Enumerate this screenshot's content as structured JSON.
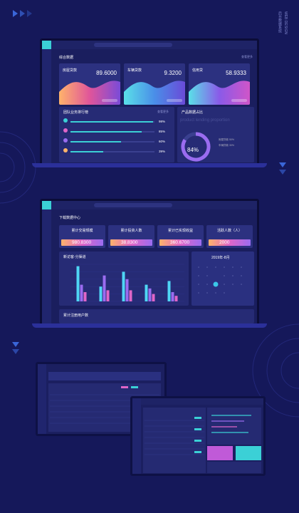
{
  "brand": {
    "en": "WEB DESIGN",
    "cn": "后台数据系统"
  },
  "screen1": {
    "header": "综合数据",
    "more": "查看更多",
    "cards": [
      {
        "title": "房屋贷款",
        "value": "89.6000"
      },
      {
        "title": "车辆贷款",
        "value": "9.3200"
      },
      {
        "title": "信用贷",
        "value": "58.9333"
      }
    ],
    "ranking": {
      "title": "团队业务排行榜",
      "more": "查看更多",
      "values": [
        98,
        85,
        60,
        39
      ],
      "value_labels": [
        "98%",
        "85%",
        "60%",
        "39%"
      ]
    },
    "share": {
      "title": "产品数据占比",
      "subtitle": "product lending proportion",
      "value": 84,
      "value_label": "84%",
      "legend": [
        "房屋贷款 50%",
        "车辆贷款 30%"
      ]
    }
  },
  "screen2": {
    "header": "下载数据中心",
    "cards": [
      {
        "title": "累计交易规模",
        "value": "980.8300"
      },
      {
        "title": "累计投资人数",
        "value": "38.8300"
      },
      {
        "title": "累计已实现收益",
        "value": "360.6700"
      },
      {
        "title": "活跃人数（人）",
        "value": "2000"
      }
    ],
    "chart": {
      "type": "bar",
      "title": "新访客-分渠道",
      "ylim": [
        0,
        100
      ],
      "series": [
        {
          "color": "#4fd6f5",
          "values": [
            95,
            40,
            80,
            45,
            55
          ]
        },
        {
          "color": "#9a6cf0",
          "values": [
            45,
            70,
            60,
            35,
            25
          ]
        },
        {
          "color": "#e066c8",
          "values": [
            25,
            30,
            30,
            20,
            15
          ]
        }
      ]
    },
    "calendar": "2019年-8月",
    "footer": "累计注册用户数"
  }
}
